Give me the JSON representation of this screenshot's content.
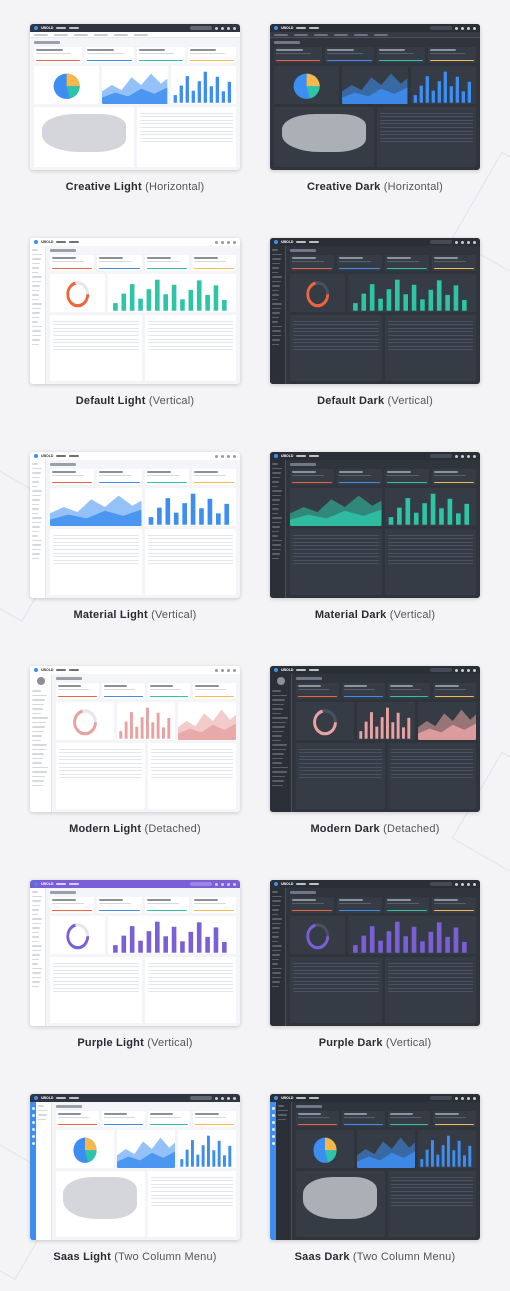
{
  "brand": {
    "logo_text": "UBOLD",
    "accent": "#3d8ef0",
    "purple_accent": "#7b5fd6",
    "teal_accent": "#2ec4a6"
  },
  "themes": [
    {
      "name": "Creative Light",
      "layout": "(Horizontal)",
      "mode": "light",
      "style": "horizontal"
    },
    {
      "name": "Creative Dark",
      "layout": "(Horizontal)",
      "mode": "dark",
      "style": "horizontal"
    },
    {
      "name": "Default Light",
      "layout": "(Vertical)",
      "mode": "light",
      "style": "vertical"
    },
    {
      "name": "Default Dark",
      "layout": "(Vertical)",
      "mode": "dark",
      "style": "vertical"
    },
    {
      "name": "Material Light",
      "layout": "(Vertical)",
      "mode": "light",
      "style": "material"
    },
    {
      "name": "Material Dark",
      "layout": "(Vertical)",
      "mode": "dark",
      "style": "material"
    },
    {
      "name": "Modern Light",
      "layout": "(Detached)",
      "mode": "light",
      "style": "detached"
    },
    {
      "name": "Modern Dark",
      "layout": "(Detached)",
      "mode": "dark",
      "style": "detached"
    },
    {
      "name": "Purple Light",
      "layout": "(Vertical)",
      "mode": "light",
      "style": "purple"
    },
    {
      "name": "Purple Dark",
      "layout": "(Vertical)",
      "mode": "dark",
      "style": "purple"
    },
    {
      "name": "Saas Light",
      "layout": "(Two Column Menu)",
      "mode": "light",
      "style": "twocol"
    },
    {
      "name": "Saas Dark",
      "layout": "(Two Column Menu)",
      "mode": "dark",
      "style": "twocol"
    }
  ]
}
